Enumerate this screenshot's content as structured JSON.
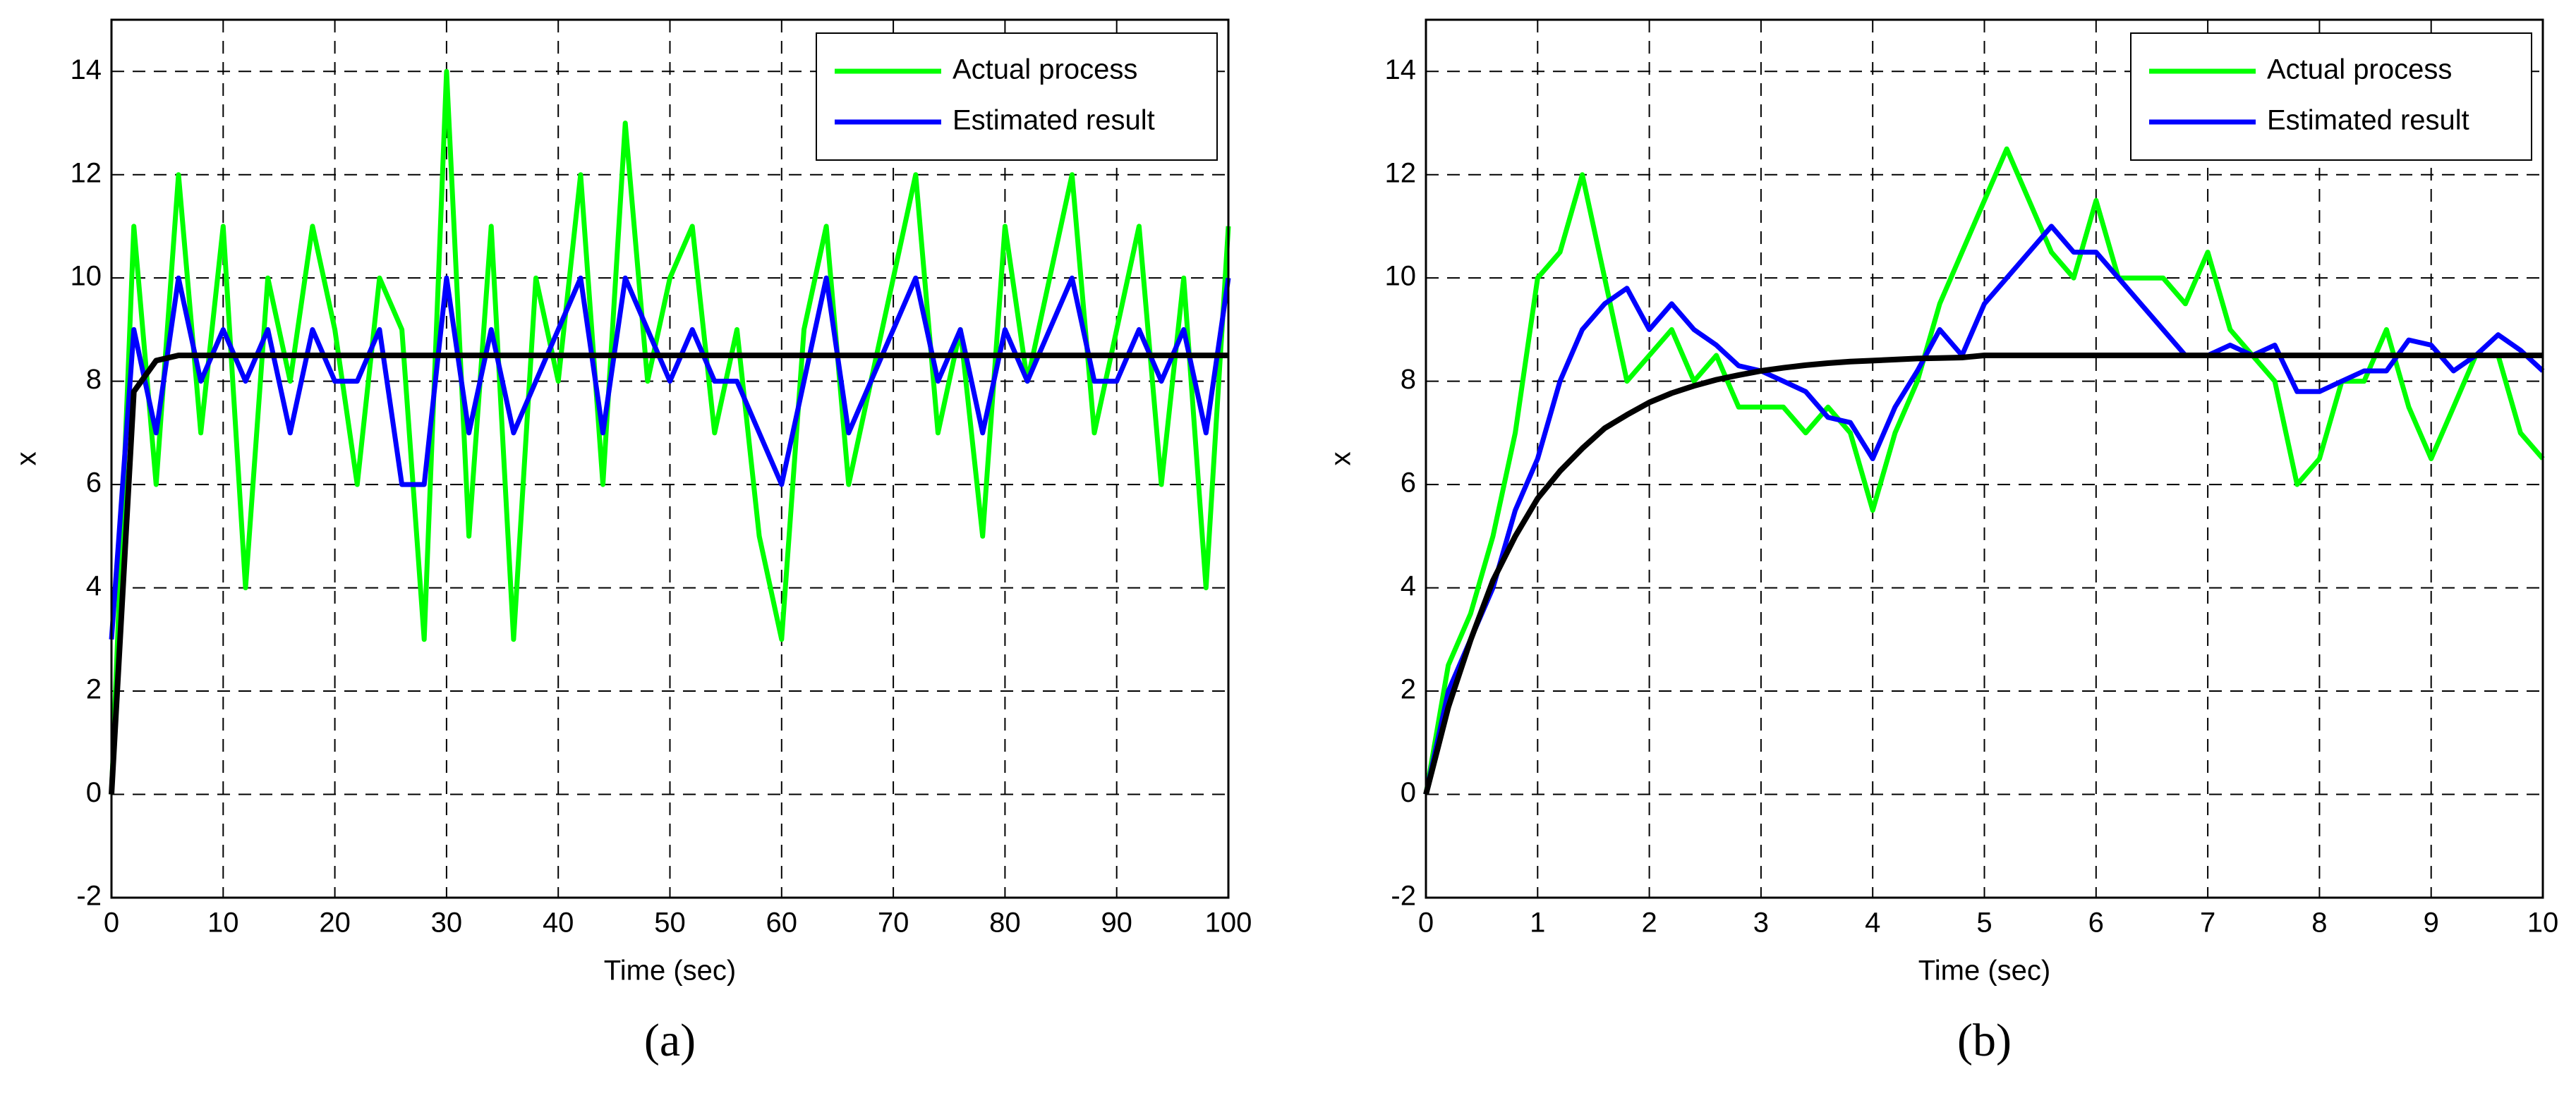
{
  "chart_data": [
    {
      "type": "line",
      "label": "(a)",
      "x_label": "Time (sec)",
      "y_label": "x",
      "xlim": [
        0,
        100
      ],
      "ylim": [
        -2,
        15
      ],
      "xticks": [
        0,
        10,
        20,
        30,
        40,
        50,
        60,
        70,
        80,
        90,
        100
      ],
      "yticks": [
        -2,
        0,
        2,
        4,
        6,
        8,
        10,
        12,
        14
      ],
      "grid": true,
      "legend": "upper right",
      "x": [
        0,
        2,
        4,
        6,
        8,
        10,
        12,
        14,
        16,
        18,
        20,
        22,
        24,
        26,
        28,
        30,
        32,
        34,
        36,
        38,
        40,
        42,
        44,
        46,
        48,
        50,
        52,
        54,
        56,
        58,
        60,
        62,
        64,
        66,
        68,
        70,
        72,
        74,
        76,
        78,
        80,
        82,
        84,
        86,
        88,
        90,
        92,
        94,
        96,
        98,
        100
      ],
      "series": [
        {
          "name": "Actual process",
          "color": "#00ff00",
          "values": [
            0,
            11,
            6,
            12,
            7,
            11,
            4,
            10,
            8,
            11,
            9,
            6,
            10,
            9,
            3,
            14,
            5,
            11,
            3,
            10,
            8,
            12,
            6,
            13,
            8,
            10,
            11,
            7,
            9,
            5,
            3,
            9,
            11,
            6,
            8,
            10,
            12,
            7,
            9,
            5,
            11,
            8,
            10,
            12,
            7,
            9,
            11,
            6,
            10,
            4,
            11
          ]
        },
        {
          "name": "Estimated result",
          "color": "#0000ff",
          "values": [
            3,
            9,
            7,
            10,
            8,
            9,
            8,
            9,
            7,
            9,
            8,
            8,
            9,
            6,
            6,
            10,
            7,
            9,
            7,
            8,
            9,
            10,
            7,
            10,
            9,
            8,
            9,
            8,
            8,
            7,
            6,
            8,
            10,
            7,
            8,
            9,
            10,
            8,
            9,
            7,
            9,
            8,
            9,
            10,
            8,
            8,
            9,
            8,
            9,
            7,
            10
          ]
        },
        {
          "color": "#000000",
          "values": [
            0,
            7.8,
            8.4,
            8.5,
            8.5,
            8.5,
            8.5,
            8.5,
            8.5,
            8.5,
            8.5,
            8.5,
            8.5,
            8.5,
            8.5,
            8.5,
            8.5,
            8.5,
            8.5,
            8.5,
            8.5,
            8.5,
            8.5,
            8.5,
            8.5,
            8.5,
            8.5,
            8.5,
            8.5,
            8.5,
            8.5,
            8.5,
            8.5,
            8.5,
            8.5,
            8.5,
            8.5,
            8.5,
            8.5,
            8.5,
            8.5,
            8.5,
            8.5,
            8.5,
            8.5,
            8.5,
            8.5,
            8.5,
            8.5,
            8.5,
            8.5
          ]
        }
      ]
    },
    {
      "type": "line",
      "label": "(b)",
      "x_label": "Time (sec)",
      "y_label": "x",
      "xlim": [
        0,
        10
      ],
      "ylim": [
        -2,
        15
      ],
      "xticks": [
        0,
        1,
        2,
        3,
        4,
        5,
        6,
        7,
        8,
        9,
        10
      ],
      "yticks": [
        -2,
        0,
        2,
        4,
        6,
        8,
        10,
        12,
        14
      ],
      "grid": true,
      "legend": "upper right",
      "x": [
        0,
        0.2,
        0.4,
        0.6,
        0.8,
        1,
        1.2,
        1.4,
        1.6,
        1.8,
        2,
        2.2,
        2.4,
        2.6,
        2.8,
        3,
        3.2,
        3.4,
        3.6,
        3.8,
        4,
        4.2,
        4.4,
        4.6,
        4.8,
        5,
        5.2,
        5.4,
        5.6,
        5.8,
        6,
        6.2,
        6.4,
        6.6,
        6.8,
        7,
        7.2,
        7.4,
        7.6,
        7.8,
        8,
        8.2,
        8.4,
        8.6,
        8.8,
        9,
        9.2,
        9.4,
        9.6,
        9.8,
        10
      ],
      "series": [
        {
          "name": "Actual process",
          "color": "#00ff00",
          "values": [
            0,
            2.5,
            3.5,
            5,
            7,
            10,
            10.5,
            12,
            10,
            8,
            8.5,
            9,
            8,
            8.5,
            7.5,
            7.5,
            7.5,
            7,
            7.5,
            7,
            5.5,
            7,
            8,
            9.5,
            10.5,
            11.5,
            12.5,
            11.5,
            10.5,
            10,
            11.5,
            10,
            10,
            10,
            9.5,
            10.5,
            9,
            8.5,
            8,
            6,
            6.5,
            8,
            8,
            9,
            7.5,
            6.5,
            7.5,
            8.5,
            8.5,
            7,
            6.5
          ]
        },
        {
          "name": "Estimated result",
          "color": "#0000ff",
          "values": [
            0,
            2,
            3,
            4,
            5.5,
            6.5,
            8,
            9,
            9.5,
            9.8,
            9,
            9.5,
            9,
            8.7,
            8.3,
            8.2,
            8,
            7.8,
            7.3,
            7.2,
            6.5,
            7.5,
            8.2,
            9,
            8.5,
            9.5,
            10,
            10.5,
            11,
            10.5,
            10.5,
            10,
            9.5,
            9,
            8.5,
            8.5,
            8.7,
            8.5,
            8.7,
            7.8,
            7.8,
            8,
            8.2,
            8.2,
            8.8,
            8.7,
            8.2,
            8.5,
            8.9,
            8.6,
            8.2
          ]
        },
        {
          "color": "#000000",
          "values": [
            0,
            1.69,
            2.99,
            4.14,
            5.0,
            5.73,
            6.26,
            6.7,
            7.09,
            7.35,
            7.59,
            7.77,
            7.91,
            8.03,
            8.12,
            8.2,
            8.26,
            8.31,
            8.35,
            8.38,
            8.4,
            8.42,
            8.44,
            8.45,
            8.46,
            8.5,
            8.5,
            8.5,
            8.5,
            8.5,
            8.5,
            8.5,
            8.5,
            8.5,
            8.5,
            8.5,
            8.5,
            8.5,
            8.5,
            8.5,
            8.5,
            8.5,
            8.5,
            8.5,
            8.5,
            8.5,
            8.5,
            8.5,
            8.5,
            8.5,
            8.5
          ]
        }
      ]
    }
  ]
}
